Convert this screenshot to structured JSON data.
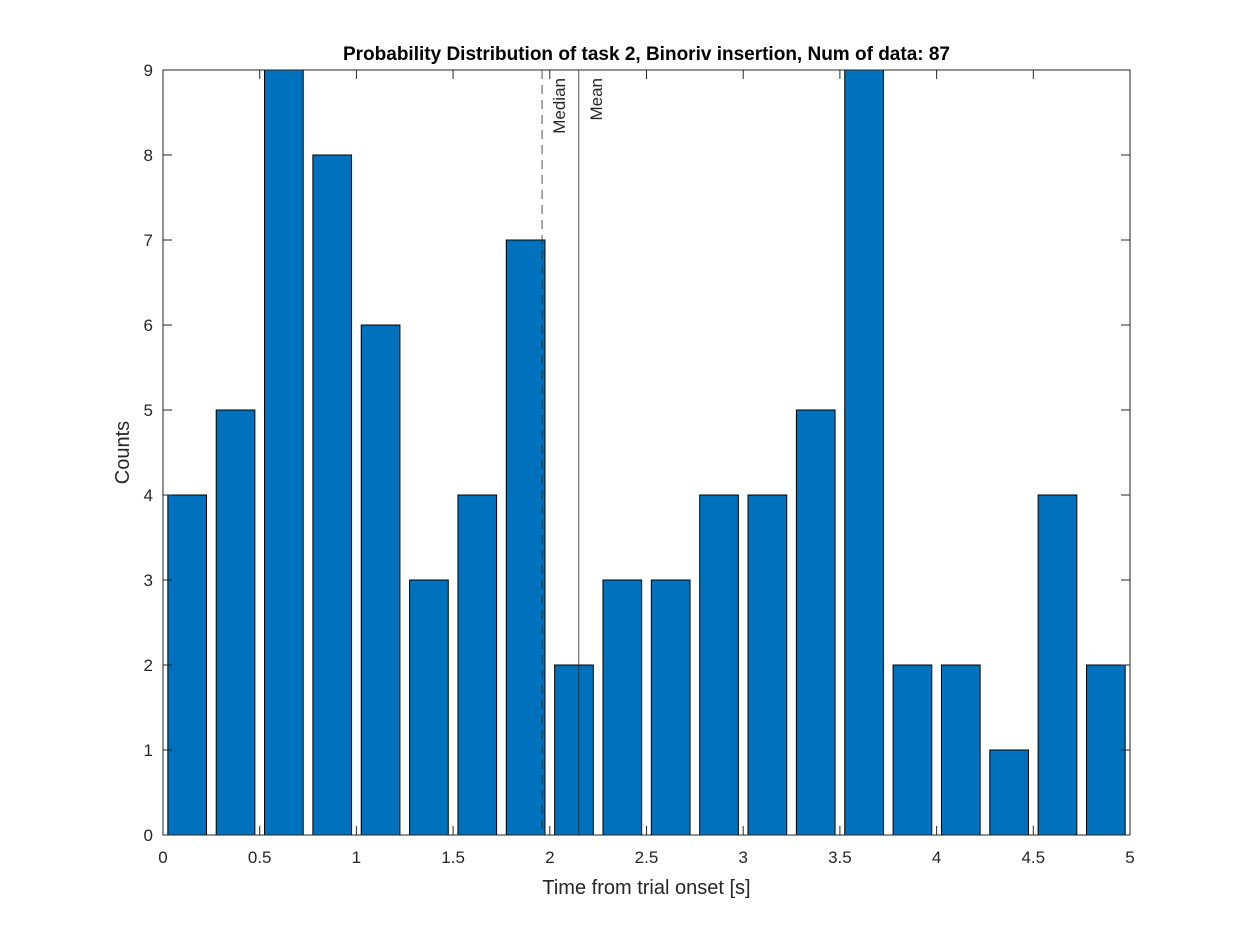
{
  "chart_data": {
    "type": "bar",
    "title": "Probability Distribution of task 2, Binoriv insertion, Num of data: 87",
    "xlabel": "Time from trial onset [s]",
    "ylabel": "Counts",
    "xlim": [
      0,
      5
    ],
    "ylim": [
      0,
      9
    ],
    "bin_width": 0.25,
    "bar_width_fraction": 0.8,
    "x": [
      0.125,
      0.375,
      0.625,
      0.875,
      1.125,
      1.375,
      1.625,
      1.875,
      2.125,
      2.375,
      2.625,
      2.875,
      3.125,
      3.375,
      3.625,
      3.875,
      4.125,
      4.375,
      4.625,
      4.875
    ],
    "values": [
      4,
      5,
      9,
      8,
      6,
      3,
      4,
      7,
      2,
      3,
      3,
      4,
      4,
      5,
      9,
      2,
      2,
      1,
      4,
      2
    ],
    "xticks": [
      0,
      0.5,
      1,
      1.5,
      2,
      2.5,
      3,
      3.5,
      4,
      4.5,
      5
    ],
    "xtick_labels": [
      "0",
      "0.5",
      "1",
      "1.5",
      "2",
      "2.5",
      "3",
      "3.5",
      "4",
      "4.5",
      "5"
    ],
    "yticks": [
      0,
      1,
      2,
      3,
      4,
      5,
      6,
      7,
      8,
      9
    ],
    "ytick_labels": [
      "0",
      "1",
      "2",
      "3",
      "4",
      "5",
      "6",
      "7",
      "8",
      "9"
    ],
    "reference_lines": [
      {
        "label": "Median",
        "x": 1.96,
        "style": "dashed"
      },
      {
        "label": "Mean",
        "x": 2.15,
        "style": "solid"
      }
    ],
    "bar_color": "#0072BD",
    "bar_edge_color": "#000000",
    "grid": false,
    "legend": "none"
  }
}
